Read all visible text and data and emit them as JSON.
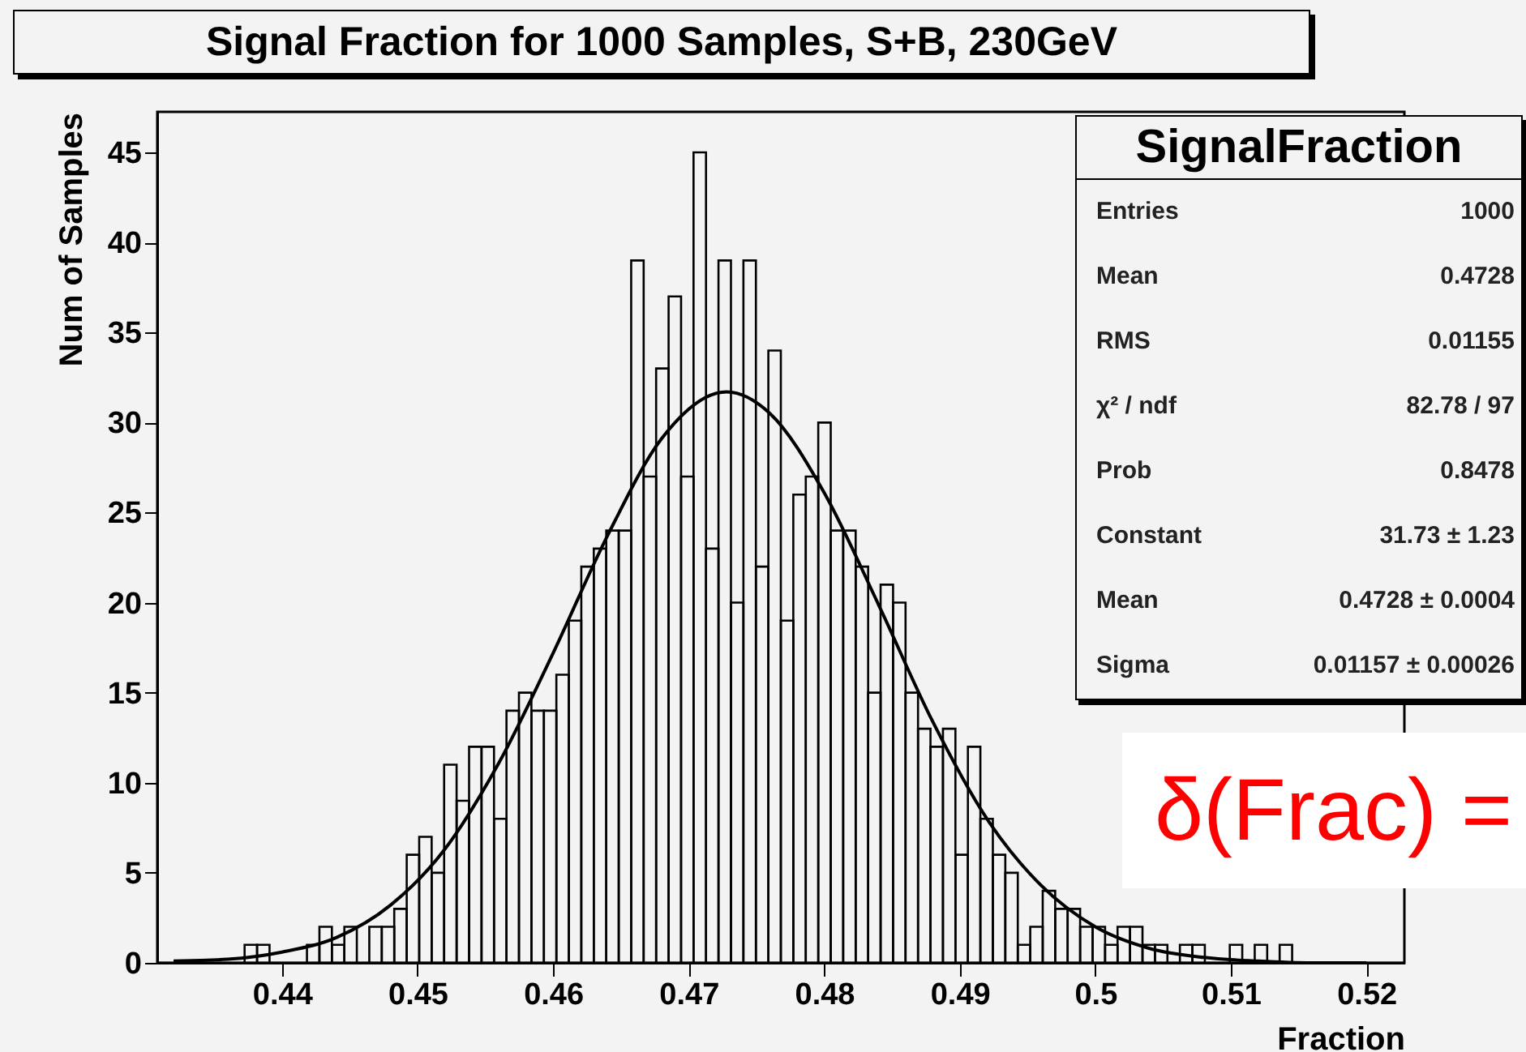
{
  "chart_data": {
    "type": "histogram",
    "title": "Signal Fraction for 1000 Samples, S+B, 230GeV",
    "xlabel": "Fraction",
    "ylabel": "Num of Samples",
    "color": "#000000",
    "bins": [
      0.4308,
      0.43172,
      0.43264,
      0.43356,
      0.43448,
      0.4354,
      0.43632,
      0.43724,
      0.43816,
      0.43908,
      0.44,
      0.44092,
      0.44184,
      0.44276,
      0.44368,
      0.4446,
      0.44552,
      0.44644,
      0.44736,
      0.44828,
      0.4492,
      0.45012,
      0.45104,
      0.45196,
      0.45288,
      0.4538,
      0.45472,
      0.45564,
      0.45656,
      0.45748,
      0.4584,
      0.45932,
      0.46024,
      0.46116,
      0.46208,
      0.463,
      0.46392,
      0.46484,
      0.46576,
      0.46668,
      0.4676,
      0.46852,
      0.46944,
      0.47036,
      0.47128,
      0.4722,
      0.47312,
      0.47404,
      0.47496,
      0.47588,
      0.4768,
      0.47772,
      0.47864,
      0.47956,
      0.48048,
      0.4814,
      0.48232,
      0.48324,
      0.48416,
      0.48508,
      0.486,
      0.48692,
      0.48784,
      0.48876,
      0.48968,
      0.4906,
      0.49152,
      0.49244,
      0.49336,
      0.49428,
      0.4952,
      0.49612,
      0.49704,
      0.49796,
      0.49888,
      0.4998,
      0.50072,
      0.50164,
      0.50256,
      0.50348,
      0.5044,
      0.50532,
      0.50624,
      0.50716,
      0.50808,
      0.509,
      0.50992,
      0.51084,
      0.51176,
      0.51268,
      0.5136,
      0.51452,
      0.51544,
      0.51636,
      0.51728,
      0.5182,
      0.51912,
      0.52004,
      0.52096,
      0.52188,
      0.5228
    ],
    "values": [
      0,
      0,
      0,
      0,
      0,
      0,
      0,
      1,
      1,
      0,
      0,
      0,
      1,
      2,
      1,
      2,
      0,
      2,
      2,
      3,
      6,
      7,
      5,
      11,
      9,
      12,
      12,
      8,
      14,
      15,
      14,
      14,
      16,
      19,
      22,
      23,
      24,
      24,
      39,
      27,
      33,
      37,
      27,
      45,
      23,
      39,
      20,
      39,
      22,
      34,
      19,
      26,
      27,
      30,
      24,
      24,
      22,
      15,
      21,
      20,
      15,
      13,
      12,
      13,
      6,
      12,
      8,
      6,
      5,
      1,
      2,
      4,
      3,
      3,
      2,
      2,
      1,
      2,
      2,
      1,
      1,
      0,
      1,
      1,
      0,
      0,
      1,
      0,
      1,
      0,
      1,
      0,
      0,
      0,
      0,
      0,
      0,
      0,
      0,
      0
    ],
    "series": [
      {
        "type": "line",
        "color": "#000000",
        "x": [
          0.432,
          0.436,
          0.44,
          0.444,
          0.448,
          0.452,
          0.456,
          0.46,
          0.464,
          0.468,
          0.4728,
          0.476,
          0.48,
          0.484,
          0.488,
          0.492,
          0.496,
          0.5,
          0.504,
          0.508,
          0.512,
          0.516,
          0.52
        ],
        "values": [
          0.1,
          0.2,
          0.6,
          1.4,
          3.2,
          6.3,
          11.1,
          17.2,
          23.7,
          29.1,
          31.7,
          30.5,
          26.1,
          19.9,
          13.4,
          8.0,
          4.3,
          2.0,
          0.8,
          0.3,
          0.1,
          0.0,
          0.0
        ]
      }
    ],
    "xlim": [
      0.4308,
      0.5228
    ],
    "xticks": [
      0.44,
      0.45,
      0.46,
      0.47,
      0.48,
      0.49,
      0.5,
      0.51,
      0.52
    ],
    "ylim": [
      0,
      47.25
    ],
    "yticks": [
      0,
      5,
      10,
      15,
      20,
      25,
      30,
      35,
      40,
      45
    ],
    "annotations": [
      "SignalFraction",
      "Entries\t1000",
      "Mean\t0.4728",
      "RMS\t0.01155",
      "χ² / ndf\t82.78 / 97",
      "Prob\t0.8478",
      "Constant\t31.73 ± 1.23",
      "Mean\t0.4728 ± 0.0004",
      "Sigma\t0.01157 ± 0.00026",
      "δ(Frac) ="
    ]
  }
}
